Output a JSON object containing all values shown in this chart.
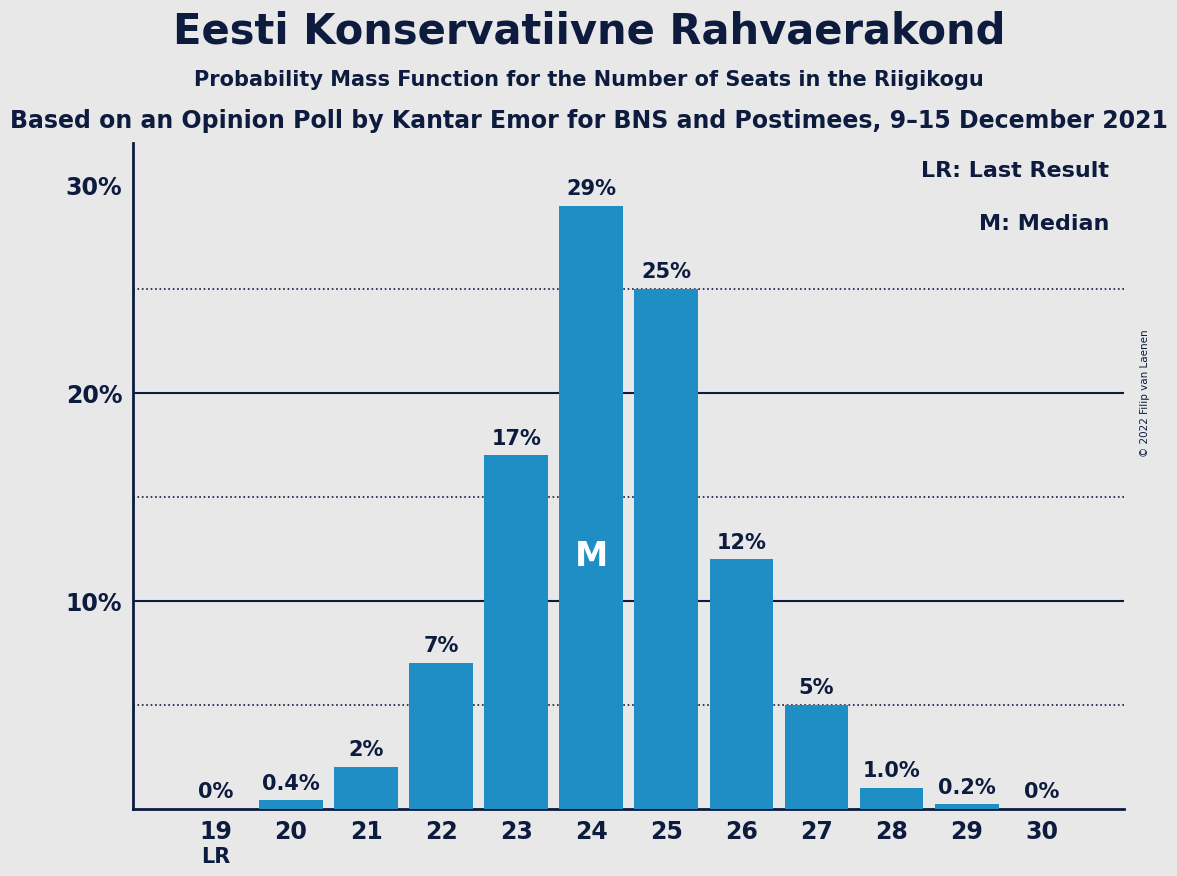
{
  "title": "Eesti Konservatiivne Rahvaerakond",
  "subtitle1": "Probability Mass Function for the Number of Seats in the Riigikogu",
  "subtitle2": "Based on an Opinion Poll by Kantar Emor for BNS and Postimees, 9–15 December 2021",
  "copyright": "© 2022 Filip van Laenen",
  "seats": [
    19,
    20,
    21,
    22,
    23,
    24,
    25,
    26,
    27,
    28,
    29,
    30
  ],
  "probabilities": [
    0.0,
    0.4,
    2.0,
    7.0,
    17.0,
    29.0,
    25.0,
    12.0,
    5.0,
    1.0,
    0.2,
    0.0
  ],
  "bar_color": "#1f8ec4",
  "background_color": "#e8e8e8",
  "text_color": "#0d1b3e",
  "bar_labels": [
    "0%",
    "0.4%",
    "2%",
    "7%",
    "17%",
    "29%",
    "25%",
    "12%",
    "5%",
    "1.0%",
    "0.2%",
    "0%"
  ],
  "median_seat": 24,
  "last_result_seat": 19,
  "lr_label": "LR",
  "median_label": "M",
  "legend_text1": "LR: Last Result",
  "legend_text2": "M: Median",
  "solid_lines": [
    10,
    20
  ],
  "dotted_lines": [
    5,
    15,
    25
  ],
  "ylim": [
    0,
    32
  ],
  "title_fontsize": 30,
  "subtitle1_fontsize": 15,
  "subtitle2_fontsize": 17,
  "axis_label_fontsize": 17,
  "bar_label_fontsize": 15,
  "legend_fontsize": 15,
  "median_label_fontsize": 24
}
